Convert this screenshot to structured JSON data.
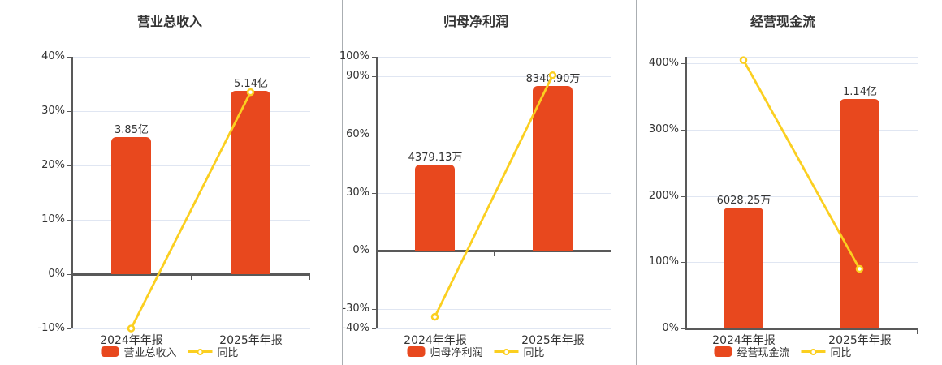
{
  "page": {
    "background": "#ffffff"
  },
  "colors": {
    "bar": "#e8481e",
    "line": "#fbcf20",
    "marker_fill": "#ffffff",
    "grid": "#e0e6f2",
    "axis": "#595959",
    "text": "#333333",
    "divider": "#aaaeb2"
  },
  "chart_data": [
    {
      "type": "bar+line",
      "title": "营业总收入",
      "categories": [
        "2024年年报",
        "2025年年报"
      ],
      "bar_series": {
        "name": "营业总收入",
        "labels": [
          "3.85亿",
          "5.14亿"
        ],
        "values": [
          3.85,
          5.14
        ],
        "unit": "亿"
      },
      "line_series": {
        "name": "同比",
        "values_pct": [
          -10,
          33.5
        ]
      },
      "y_ticks": [
        -10,
        0,
        10,
        20,
        30,
        40
      ],
      "ylim": [
        -10,
        40
      ],
      "bar_peak_pct": 33.7,
      "grid": true,
      "legend_position": "bottom"
    },
    {
      "type": "bar+line",
      "title": "归母净利润",
      "categories": [
        "2024年年报",
        "2025年年报"
      ],
      "bar_series": {
        "name": "归母净利润",
        "labels": [
          "4379.13万",
          "8340.90万"
        ],
        "values": [
          4379.13,
          8340.9
        ],
        "unit": "万"
      },
      "line_series": {
        "name": "同比",
        "values_pct": [
          -34,
          90.5
        ]
      },
      "y_ticks": [
        -40,
        -30,
        0,
        30,
        60,
        90,
        100
      ],
      "ylim": [
        -40,
        100
      ],
      "bar_peak_pct": 84.9,
      "grid": true,
      "legend_position": "bottom"
    },
    {
      "type": "bar+line",
      "title": "经营现金流",
      "categories": [
        "2024年年报",
        "2025年年报"
      ],
      "bar_series": {
        "name": "经营现金流",
        "labels": [
          "6028.25万",
          "1.14亿"
        ],
        "values": [
          6028.25,
          11400
        ],
        "unit": "万"
      },
      "line_series": {
        "name": "同比",
        "values_pct": [
          405,
          90
        ]
      },
      "y_ticks": [
        0,
        100,
        200,
        300,
        400
      ],
      "ylim": [
        0,
        410
      ],
      "bar_peak_pct": 346,
      "grid": true,
      "legend_position": "bottom"
    }
  ]
}
